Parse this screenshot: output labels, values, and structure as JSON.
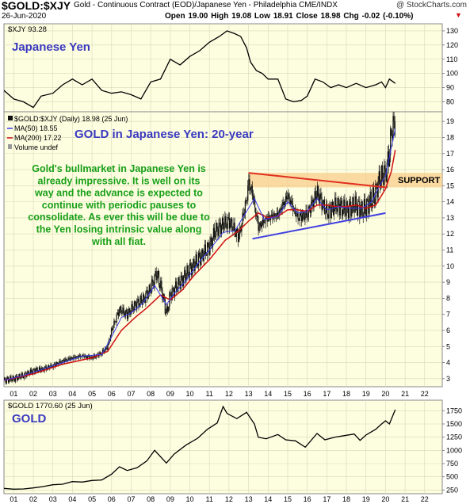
{
  "header": {
    "symbol": "$GOLD:$XJY",
    "description": "Gold - Continuous Contract (EOD)/Japanese Yen - Philadelphia CME/INDX",
    "copyright": "@ StockCharts.com",
    "date": "26-Jun-2020",
    "ohlc": "Open 19.00  High 19.08  Low 18.91  Close 18.98  Chg -0.02 (-0.10%)",
    "ohlc_arrow": "▼"
  },
  "colors": {
    "panel_bg": "#fdfde0",
    "grid": "#d8d8b8",
    "price_line": "#000000",
    "candles": "#111111",
    "ma50": "#3a3af0",
    "ma200": "#d01010",
    "title_blue": "#3a3abf",
    "annotation_green": "#18a018",
    "resistance": "#e03020",
    "support_line": "#4040e0",
    "support_band": "#f8ce8c"
  },
  "chart_data": [
    {
      "type": "line",
      "panel": "top",
      "title": "Japanese Yen",
      "legend": "$XJY 93.28",
      "y_ticks": [
        80,
        90,
        100,
        110,
        120,
        130
      ],
      "ylim": [
        73,
        135
      ],
      "x_range": [
        2000.5,
        2022.9
      ],
      "series": [
        {
          "x": [
            2000.5,
            2001.0,
            2001.5,
            2002.0,
            2002.4,
            2003.0,
            2003.5,
            2004.0,
            2004.5,
            2005.0,
            2005.5,
            2006.0,
            2006.5,
            2007.0,
            2007.5,
            2008.0,
            2008.5,
            2009.0,
            2009.5,
            2010.0,
            2010.5,
            2011.0,
            2011.5,
            2011.9,
            2012.3,
            2012.6,
            2012.9,
            2013.1,
            2013.4,
            2013.7,
            2014.0,
            2014.5,
            2014.9,
            2015.3,
            2015.7,
            2016.0,
            2016.4,
            2016.8,
            2017.2,
            2017.6,
            2018.0,
            2018.5,
            2019.0,
            2019.5,
            2019.8,
            2020.0,
            2020.2,
            2020.5
          ],
          "values": [
            88,
            82,
            80,
            76,
            84,
            86,
            92,
            96,
            92,
            96,
            88,
            86,
            87,
            85,
            82,
            94,
            96,
            110,
            106,
            112,
            116,
            122,
            126,
            130,
            128,
            126,
            118,
            108,
            102,
            100,
            96,
            96,
            82,
            80,
            81,
            84,
            96,
            94,
            90,
            92,
            90,
            93,
            90,
            92,
            94,
            90,
            96,
            93
          ]
        }
      ]
    },
    {
      "type": "candlestick",
      "panel": "middle",
      "title": "GOLD in Japanese Yen: 20-year",
      "legend": [
        {
          "name": "$GOLD:$XJY (Daily) 18.98 (25 Jun)"
        },
        {
          "name": "MA(50) 18.55"
        },
        {
          "name": "MA(200) 17.22"
        },
        {
          "name": "Volume undef"
        }
      ],
      "annotation": "Gold's bullmarket in Japanese Yen is already impressive. It is well on its way and the advance is expected to continue with periodic pauses to consolidate. As ever this will be due to the Yen losing intrinsic value along with all fiat.",
      "support_label": "SUPPORT",
      "support_zone": [
        14.9,
        15.8
      ],
      "resistance_line": {
        "x": [
          2013.0,
          2020.0
        ],
        "y": [
          15.8,
          14.9
        ]
      },
      "support_line": {
        "x": [
          2013.2,
          2020.0
        ],
        "y": [
          11.7,
          13.3
        ]
      },
      "y_ticks": [
        3,
        4,
        5,
        6,
        7,
        8,
        9,
        10,
        11,
        12,
        13,
        14,
        15,
        16,
        17,
        18,
        19
      ],
      "ylim": [
        2.5,
        19.6
      ],
      "x_range": [
        2000.5,
        2022.9
      ],
      "price": {
        "x": [
          2000.5,
          2001.0,
          2001.5,
          2002.0,
          2002.5,
          2003.0,
          2003.5,
          2004.0,
          2004.5,
          2005.0,
          2005.5,
          2005.8,
          2006.0,
          2006.4,
          2006.8,
          2007.2,
          2007.6,
          2008.0,
          2008.3,
          2008.6,
          2008.8,
          2009.0,
          2009.5,
          2010.0,
          2010.5,
          2011.0,
          2011.3,
          2011.7,
          2012.0,
          2012.5,
          2012.9,
          2013.0,
          2013.2,
          2013.5,
          2013.8,
          2014.0,
          2014.5,
          2015.0,
          2015.5,
          2016.0,
          2016.5,
          2017.0,
          2017.5,
          2018.0,
          2018.5,
          2018.8,
          2019.0,
          2019.4,
          2019.7,
          2020.0,
          2020.2,
          2020.3,
          2020.5
        ],
        "values": [
          2.9,
          3.0,
          3.2,
          3.5,
          3.6,
          3.8,
          4.1,
          4.3,
          4.4,
          4.3,
          4.6,
          5.0,
          6.0,
          7.3,
          7.0,
          7.6,
          7.9,
          8.6,
          9.6,
          8.3,
          7.0,
          8.2,
          9.0,
          9.8,
          10.5,
          11.2,
          12.2,
          12.6,
          12.8,
          11.8,
          14.2,
          15.2,
          14.5,
          12.4,
          12.8,
          13.0,
          13.2,
          14.4,
          13.0,
          13.2,
          14.6,
          13.3,
          13.8,
          13.5,
          13.8,
          13.4,
          13.7,
          14.3,
          15.4,
          15.8,
          17.0,
          18.4,
          19.0
        ]
      },
      "ma50": {
        "x": [
          2000.5,
          2001.5,
          2002.5,
          2003.5,
          2004.5,
          2005.5,
          2006.0,
          2006.5,
          2007.0,
          2007.6,
          2008.2,
          2008.8,
          2009.2,
          2009.8,
          2010.5,
          2011.0,
          2011.7,
          2012.3,
          2012.9,
          2013.3,
          2013.8,
          2014.5,
          2015.0,
          2015.5,
          2016.0,
          2016.5,
          2017.0,
          2017.6,
          2018.2,
          2018.8,
          2019.3,
          2019.7,
          2020.0,
          2020.3,
          2020.5
        ],
        "values": [
          2.9,
          3.2,
          3.6,
          4.0,
          4.4,
          4.5,
          5.6,
          6.8,
          7.1,
          7.7,
          8.8,
          7.6,
          8.3,
          9.1,
          10.3,
          11.0,
          12.1,
          12.2,
          13.4,
          14.2,
          12.9,
          13.1,
          14.0,
          13.3,
          13.4,
          14.2,
          13.5,
          13.7,
          13.6,
          13.6,
          14.0,
          15.0,
          15.6,
          17.4,
          18.55
        ]
      },
      "ma200": {
        "x": [
          2000.5,
          2002.0,
          2003.5,
          2005.0,
          2005.8,
          2006.5,
          2007.2,
          2007.8,
          2008.5,
          2009.0,
          2009.6,
          2010.2,
          2011.0,
          2011.8,
          2012.5,
          2013.0,
          2013.5,
          2014.0,
          2014.5,
          2015.0,
          2015.5,
          2016.0,
          2016.5,
          2017.0,
          2017.5,
          2018.0,
          2018.5,
          2019.0,
          2019.5,
          2020.0,
          2020.3,
          2020.5
        ],
        "values": [
          2.9,
          3.3,
          3.9,
          4.3,
          4.7,
          6.0,
          6.8,
          7.4,
          8.2,
          7.9,
          8.5,
          9.4,
          10.4,
          11.6,
          12.2,
          12.8,
          13.3,
          13.0,
          13.1,
          13.5,
          13.5,
          13.4,
          13.8,
          13.8,
          13.7,
          13.7,
          13.8,
          13.6,
          13.8,
          14.8,
          15.9,
          17.22
        ]
      }
    },
    {
      "type": "line",
      "panel": "bottom",
      "title": "GOLD",
      "legend": "$GOLD 1770.60 (25 Jun)",
      "y_ticks": [
        250,
        500,
        750,
        1000,
        1250,
        1500,
        1750
      ],
      "ylim": [
        180,
        1950
      ],
      "x_range": [
        2000.5,
        2022.9
      ],
      "series": [
        {
          "x": [
            2000.5,
            2001.0,
            2001.5,
            2002.0,
            2002.5,
            2003.0,
            2003.5,
            2004.0,
            2004.5,
            2005.0,
            2005.5,
            2006.0,
            2006.4,
            2006.8,
            2007.3,
            2007.8,
            2008.2,
            2008.8,
            2009.2,
            2009.8,
            2010.4,
            2010.9,
            2011.4,
            2011.7,
            2011.9,
            2012.4,
            2012.9,
            2013.3,
            2013.5,
            2013.9,
            2014.5,
            2014.9,
            2015.4,
            2015.9,
            2016.5,
            2016.9,
            2017.4,
            2017.9,
            2018.4,
            2018.7,
            2019.0,
            2019.5,
            2019.8,
            2020.0,
            2020.2,
            2020.5
          ],
          "values": [
            280,
            265,
            270,
            290,
            315,
            350,
            360,
            410,
            400,
            430,
            440,
            550,
            690,
            620,
            670,
            800,
            1000,
            760,
            930,
            1100,
            1230,
            1400,
            1520,
            1830,
            1700,
            1600,
            1720,
            1500,
            1250,
            1220,
            1300,
            1200,
            1180,
            1060,
            1320,
            1200,
            1250,
            1280,
            1310,
            1190,
            1290,
            1400,
            1500,
            1560,
            1500,
            1770
          ]
        }
      ]
    }
  ],
  "x_axis": {
    "labels": [
      "01",
      "02",
      "03",
      "04",
      "05",
      "06",
      "07",
      "08",
      "09",
      "10",
      "11",
      "12",
      "13",
      "14",
      "15",
      "16",
      "17",
      "18",
      "19",
      "20",
      "21",
      "22"
    ],
    "values": [
      2001,
      2002,
      2003,
      2004,
      2005,
      2006,
      2007,
      2008,
      2009,
      2010,
      2011,
      2012,
      2013,
      2014,
      2015,
      2016,
      2017,
      2018,
      2019,
      2020,
      2021,
      2022
    ]
  }
}
